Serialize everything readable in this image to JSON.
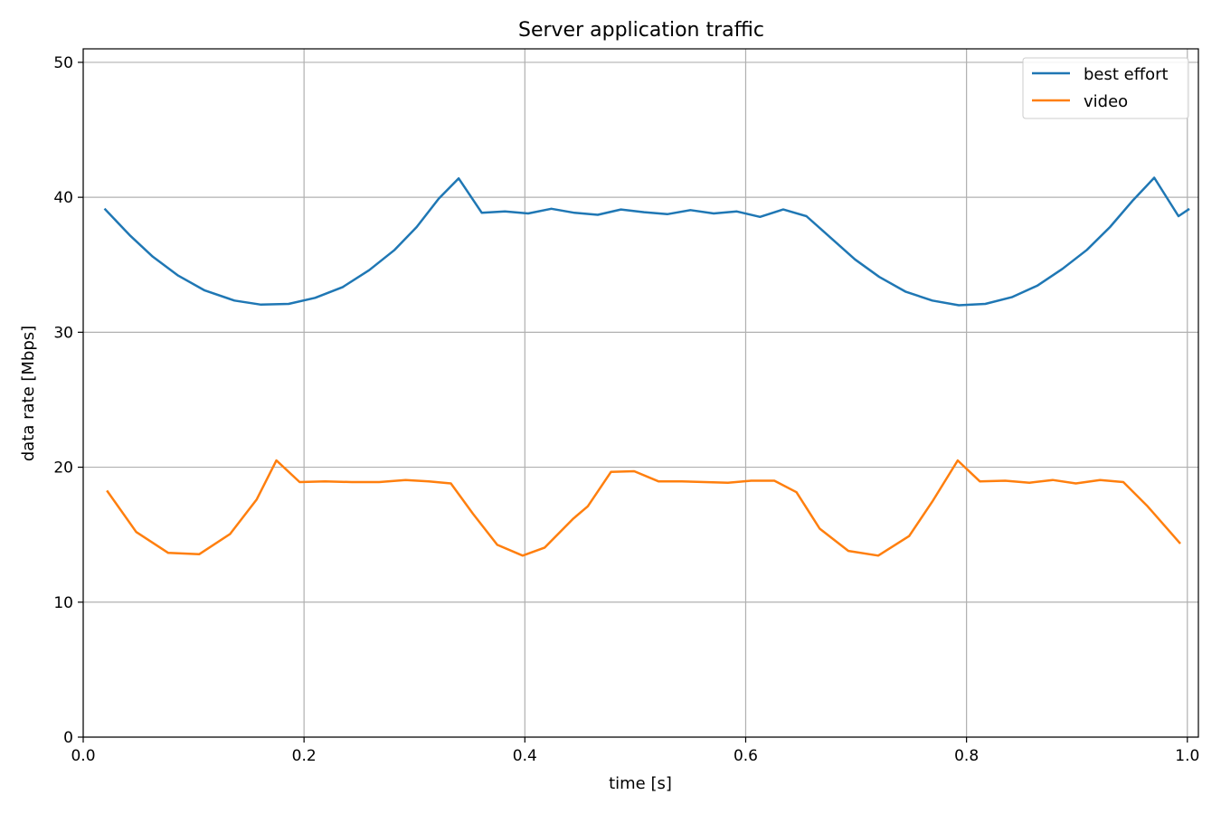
{
  "chart_data": {
    "type": "line",
    "title": "Server application traffic",
    "xlabel": "time [s]",
    "ylabel": "data rate [Mbps]",
    "xlim": [
      0.0,
      1.01
    ],
    "ylim": [
      0,
      51
    ],
    "x_ticks": [
      "0.0",
      "0.2",
      "0.4",
      "0.6",
      "0.8",
      "1.0"
    ],
    "x_tick_values": [
      0.0,
      0.2,
      0.4,
      0.6,
      0.8,
      1.0
    ],
    "y_ticks": [
      "0",
      "10",
      "20",
      "30",
      "40",
      "50"
    ],
    "y_tick_values": [
      0,
      10,
      20,
      30,
      40,
      50
    ],
    "grid": true,
    "legend_position": "top-right",
    "series": [
      {
        "name": "best effort",
        "color": "#1f77b4",
        "points": [
          [
            0.02,
            39.1
          ],
          [
            0.042,
            37.2
          ],
          [
            0.063,
            35.6
          ],
          [
            0.086,
            34.2
          ],
          [
            0.11,
            33.1
          ],
          [
            0.137,
            32.35
          ],
          [
            0.161,
            32.05
          ],
          [
            0.186,
            32.1
          ],
          [
            0.21,
            32.55
          ],
          [
            0.235,
            33.35
          ],
          [
            0.259,
            34.6
          ],
          [
            0.282,
            36.1
          ],
          [
            0.302,
            37.8
          ],
          [
            0.322,
            39.9
          ],
          [
            0.34,
            41.4
          ],
          [
            0.361,
            38.85
          ],
          [
            0.382,
            38.95
          ],
          [
            0.403,
            38.8
          ],
          [
            0.424,
            39.15
          ],
          [
            0.445,
            38.85
          ],
          [
            0.466,
            38.7
          ],
          [
            0.487,
            39.1
          ],
          [
            0.508,
            38.9
          ],
          [
            0.529,
            38.75
          ],
          [
            0.55,
            39.05
          ],
          [
            0.571,
            38.8
          ],
          [
            0.592,
            38.95
          ],
          [
            0.613,
            38.55
          ],
          [
            0.634,
            39.1
          ],
          [
            0.655,
            38.6
          ],
          [
            0.677,
            37.0
          ],
          [
            0.699,
            35.4
          ],
          [
            0.721,
            34.1
          ],
          [
            0.745,
            33.0
          ],
          [
            0.769,
            32.35
          ],
          [
            0.793,
            32.0
          ],
          [
            0.817,
            32.1
          ],
          [
            0.841,
            32.6
          ],
          [
            0.864,
            33.45
          ],
          [
            0.887,
            34.7
          ],
          [
            0.909,
            36.1
          ],
          [
            0.93,
            37.8
          ],
          [
            0.951,
            39.8
          ],
          [
            0.97,
            41.45
          ],
          [
            0.992,
            38.6
          ],
          [
            1.001,
            39.1
          ]
        ]
      },
      {
        "name": "video",
        "color": "#ff7f0e",
        "points": [
          [
            0.022,
            18.2
          ],
          [
            0.048,
            15.2
          ],
          [
            0.077,
            13.65
          ],
          [
            0.105,
            13.55
          ],
          [
            0.133,
            15.05
          ],
          [
            0.157,
            17.6
          ],
          [
            0.175,
            20.5
          ],
          [
            0.196,
            18.9
          ],
          [
            0.219,
            18.95
          ],
          [
            0.243,
            18.9
          ],
          [
            0.268,
            18.9
          ],
          [
            0.292,
            19.05
          ],
          [
            0.313,
            18.95
          ],
          [
            0.333,
            18.8
          ],
          [
            0.353,
            16.55
          ],
          [
            0.375,
            14.25
          ],
          [
            0.398,
            13.45
          ],
          [
            0.418,
            14.05
          ],
          [
            0.444,
            16.2
          ],
          [
            0.457,
            17.1
          ],
          [
            0.478,
            19.65
          ],
          [
            0.499,
            19.7
          ],
          [
            0.521,
            18.95
          ],
          [
            0.542,
            18.95
          ],
          [
            0.563,
            18.9
          ],
          [
            0.584,
            18.85
          ],
          [
            0.605,
            19.0
          ],
          [
            0.626,
            19.0
          ],
          [
            0.646,
            18.15
          ],
          [
            0.667,
            15.45
          ],
          [
            0.693,
            13.8
          ],
          [
            0.72,
            13.45
          ],
          [
            0.748,
            14.9
          ],
          [
            0.769,
            17.45
          ],
          [
            0.792,
            20.5
          ],
          [
            0.812,
            18.95
          ],
          [
            0.835,
            19.0
          ],
          [
            0.857,
            18.85
          ],
          [
            0.878,
            19.05
          ],
          [
            0.899,
            18.8
          ],
          [
            0.921,
            19.05
          ],
          [
            0.942,
            18.9
          ],
          [
            0.964,
            17.1
          ],
          [
            0.993,
            14.4
          ]
        ]
      }
    ]
  }
}
